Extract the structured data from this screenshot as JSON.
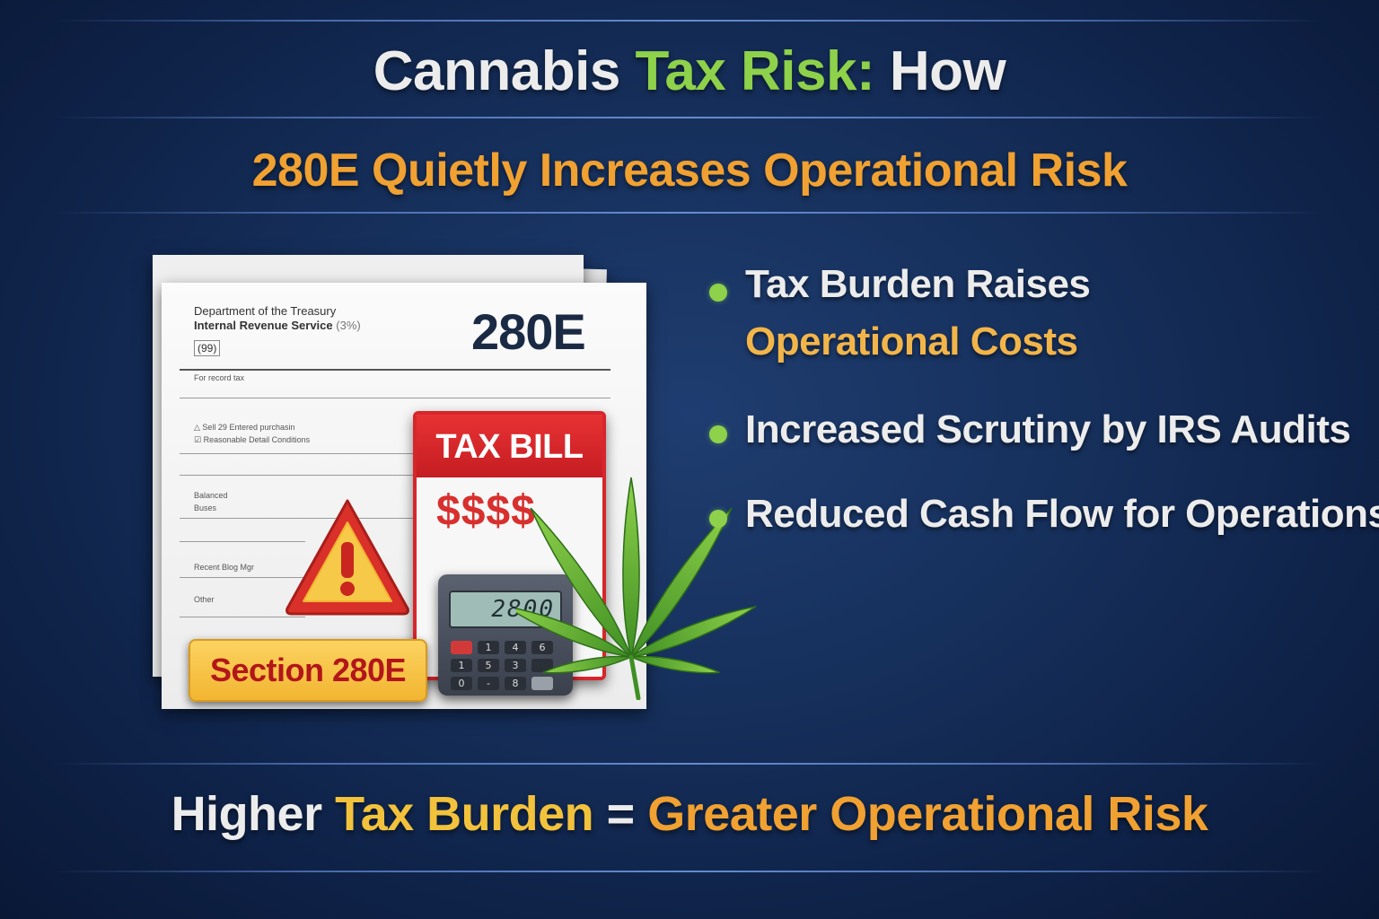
{
  "title": {
    "part1": "Cannabis ",
    "part2": "Tax Risk:",
    "part3": " How"
  },
  "subtitle": "280E Quietly Increases Operational Risk",
  "document": {
    "header_line1": "Department of the Treasury",
    "header_line2": "Internal Revenue Service",
    "header_line2_suffix": "(3%)",
    "form_box": "(99)",
    "big_code": "280E",
    "fine_print_1": "For record tax",
    "fine_print_2": "Sell   29 Entered  purchasin",
    "fine_print_3": "Reasonable Detail Conditions",
    "fine_print_4": "Balanced",
    "fine_print_5": "Buses",
    "fine_print_6": "Recent Blog Mgr",
    "fine_print_7": "Other"
  },
  "tax_bill": {
    "heading": "TAX BILL",
    "amount": "$$$$"
  },
  "calculator": {
    "display": "2800 ",
    "keys": [
      "1",
      "4",
      "6",
      "1",
      "5",
      "3",
      "0",
      "-",
      "8",
      ""
    ]
  },
  "badge": "Section 280E",
  "bullets": [
    {
      "line1": "Tax Burden Raises",
      "line2": "Operational Costs"
    },
    {
      "line1": "Increased Scrutiny by IRS Audits"
    },
    {
      "line1": "Reduced Cash Flow for Operations"
    }
  ],
  "footer": {
    "part1": "Higher ",
    "part2": "Tax Burden",
    "part3": " = ",
    "part4": "Greater Operational Risk"
  },
  "colors": {
    "background": "#16305c",
    "green_accent": "#8ed14a",
    "orange_accent": "#f0a131",
    "yellow_accent": "#f2c23c",
    "bill_red": "#d8302e"
  },
  "icons": [
    "warning-icon",
    "cannabis-leaf-icon",
    "calculator-icon",
    "bullet-dot-icon"
  ]
}
